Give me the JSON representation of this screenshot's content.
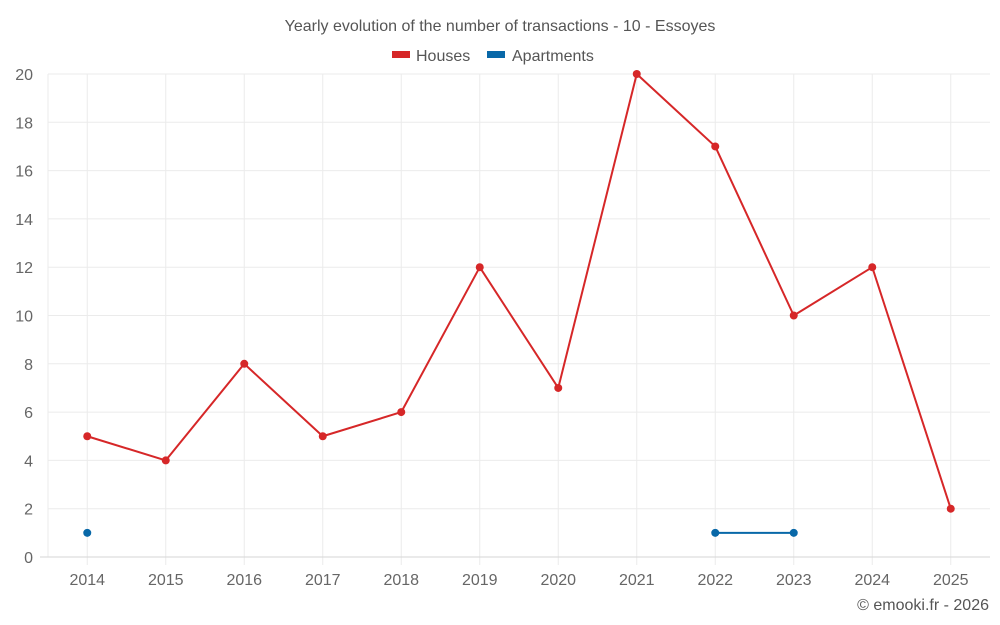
{
  "chart_data": {
    "type": "line",
    "title": "Yearly evolution of the number of transactions - 10 - Essoyes",
    "xlabel": "",
    "ylabel": "",
    "categories": [
      "2014",
      "2015",
      "2016",
      "2017",
      "2018",
      "2019",
      "2020",
      "2021",
      "2022",
      "2023",
      "2024",
      "2025"
    ],
    "ylim": [
      0,
      20
    ],
    "yticks": [
      0,
      2,
      4,
      6,
      8,
      10,
      12,
      14,
      16,
      18,
      20
    ],
    "grid": true,
    "legend_position": "top-center",
    "series": [
      {
        "name": "Houses",
        "color": "#d62728",
        "values": [
          5,
          4,
          8,
          5,
          6,
          12,
          7,
          20,
          17,
          10,
          12,
          2
        ]
      },
      {
        "name": "Apartments",
        "color": "#0868a8",
        "values": [
          1,
          null,
          null,
          null,
          null,
          null,
          null,
          null,
          1,
          1,
          null,
          null
        ]
      }
    ],
    "credit": "© emooki.fr - 2026"
  }
}
